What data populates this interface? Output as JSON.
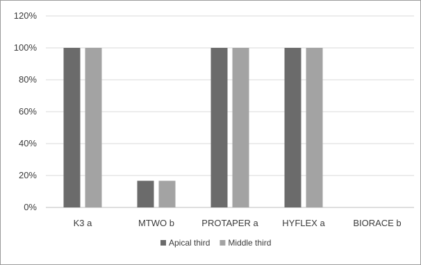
{
  "chart_data": {
    "type": "bar",
    "categories": [
      "K3 a",
      "MTWO b",
      "PROTAPER a",
      "HYFLEX a",
      "BIORACE b"
    ],
    "series": [
      {
        "name": "Apical third",
        "values": [
          100,
          16.7,
          100,
          100,
          0
        ],
        "color": "#6b6b6b"
      },
      {
        "name": "Middle third",
        "values": [
          100,
          16.7,
          100,
          100,
          0
        ],
        "color": "#a3a3a3"
      }
    ],
    "yticks": [
      "0%",
      "20%",
      "40%",
      "60%",
      "80%",
      "100%",
      "120%"
    ],
    "ylim": [
      0,
      120
    ],
    "grid": true,
    "legend": "bottom-center"
  }
}
